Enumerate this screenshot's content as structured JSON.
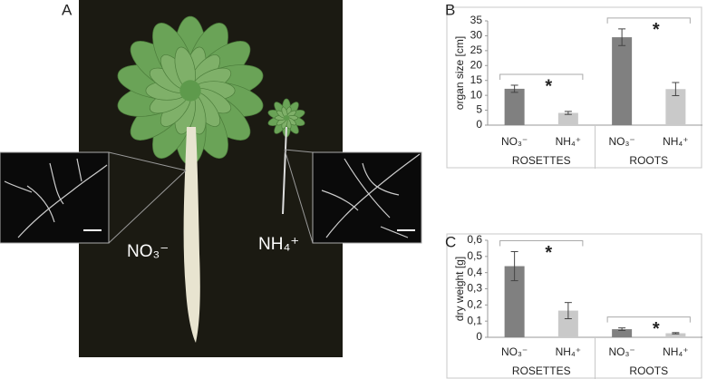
{
  "panel_a": {
    "label": "A",
    "labels": [
      "NO₃⁻",
      "NH₄⁺"
    ]
  },
  "chart_data": [
    {
      "type": "bar",
      "panel": "B",
      "ylabel": "organ size [cm]",
      "categories": [
        "NO₃⁻",
        "NH₄⁺",
        "NO₃⁻",
        "NH₄⁺"
      ],
      "groups": [
        "ROSETTES",
        "ROOTS"
      ],
      "values": [
        12.2,
        4.1,
        29.5,
        12.1
      ],
      "errors": [
        1.2,
        0.5,
        2.8,
        2.2
      ],
      "colors": [
        "#808080",
        "#c9c9c9",
        "#808080",
        "#c9c9c9"
      ],
      "ylim": [
        0,
        35
      ],
      "yticks": [
        0,
        5,
        10,
        15,
        20,
        25,
        30,
        35
      ],
      "annotations": [
        "*",
        "*"
      ]
    },
    {
      "type": "bar",
      "panel": "C",
      "ylabel": "dry weight [g]",
      "categories": [
        "NO₃⁻",
        "NH₄⁺",
        "NO₃⁻",
        "NH₄⁺"
      ],
      "groups": [
        "ROSETTES",
        "ROOTS"
      ],
      "values": [
        0.44,
        0.165,
        0.05,
        0.025
      ],
      "errors": [
        0.09,
        0.05,
        0.008,
        0.004
      ],
      "colors": [
        "#808080",
        "#c9c9c9",
        "#808080",
        "#c9c9c9"
      ],
      "ylim": [
        0,
        0.6
      ],
      "yticks": [
        0,
        {
          "value": 0.1,
          "label": "0,1"
        },
        {
          "value": 0.2,
          "label": "0,2"
        },
        {
          "value": 0.3,
          "label": "0,3"
        },
        {
          "value": 0.4,
          "label": "0,4"
        },
        {
          "value": 0.5,
          "label": "0,5"
        },
        {
          "value": 0.6,
          "label": "0,6"
        }
      ],
      "annotations": [
        "*",
        "*"
      ]
    }
  ]
}
